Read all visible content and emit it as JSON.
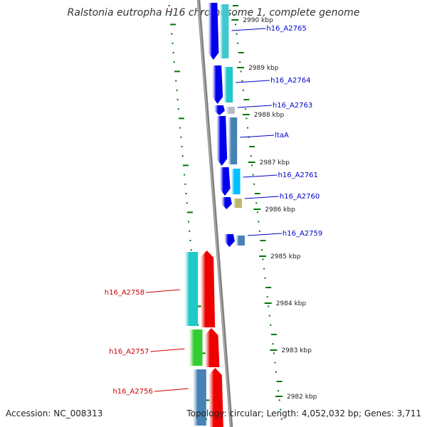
{
  "title": "Ralstonia eutropha H16 chromosome 1, complete genome",
  "footer": {
    "accession": "Accession: NC_008313",
    "summary": "Topology: circular; Length: 4,052,032 bp; Genes: 3,711"
  },
  "colors": {
    "forward_strand": "#0000ee",
    "reverse_strand": "#ee0000",
    "backbone": "#7f7f7f",
    "tick": "#007700",
    "label_forward": "#0000cc",
    "label_reverse": "#cc0000"
  },
  "ticks": [
    {
      "label": "2990 kbp"
    },
    {
      "label": "2989 kbp"
    },
    {
      "label": "2988 kbp"
    },
    {
      "label": "2987 kbp"
    },
    {
      "label": "2986 kbp"
    },
    {
      "label": "2985 kbp"
    },
    {
      "label": "2984 kbp"
    },
    {
      "label": "2983 kbp"
    },
    {
      "label": "2982 kbp"
    }
  ],
  "genes": [
    {
      "name": "h16_A2765",
      "strand": "forward",
      "cog_color": "#40c8d0"
    },
    {
      "name": "h16_A2764",
      "strand": "forward",
      "cog_color": "#20c8c8"
    },
    {
      "name": "h16_A2763",
      "strand": "forward",
      "cog_color": "#b8bcc8"
    },
    {
      "name": "ltaA",
      "strand": "forward",
      "cog_color": "#4682b4"
    },
    {
      "name": "h16_A2761",
      "strand": "forward",
      "cog_color": "#00bfff"
    },
    {
      "name": "h16_A2760",
      "strand": "forward",
      "cog_color": "#bdb76b"
    },
    {
      "name": "h16_A2759",
      "strand": "forward",
      "cog_color": "#4682b4"
    },
    {
      "name": "h16_A2758",
      "strand": "reverse",
      "cog_color": "#20c8c8"
    },
    {
      "name": "h16_A2757",
      "strand": "reverse",
      "cog_color": "#32cd32"
    },
    {
      "name": "h16_A2756",
      "strand": "reverse",
      "cog_color": "#4682b4"
    }
  ]
}
